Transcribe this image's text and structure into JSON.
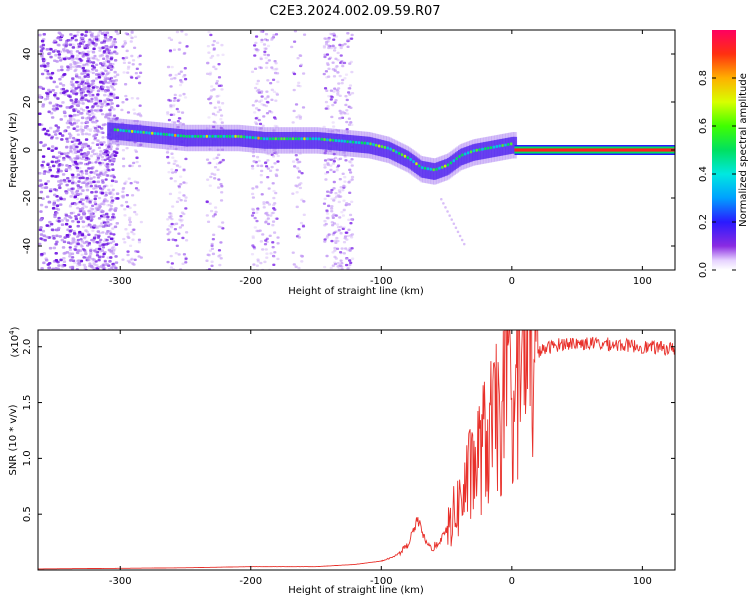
{
  "title": "C2E3.2024.002.09.59.R07",
  "chart_data": [
    {
      "type": "heatmap",
      "name": "spectrogram",
      "xlabel": "Height of straight line (km)",
      "ylabel": "Frequency (Hz)",
      "xlim": [
        -363,
        125
      ],
      "ylim": [
        -50,
        50
      ],
      "xticks": [
        -300,
        -200,
        -100,
        0,
        100
      ],
      "yticks": [
        -40,
        -20,
        0,
        20,
        40
      ],
      "ridge_frequency": {
        "x": [
          -310,
          -290,
          -270,
          -250,
          -230,
          -210,
          -190,
          -170,
          -150,
          -130,
          -110,
          -95,
          -80,
          -70,
          -60,
          -50,
          -40,
          -30,
          -20,
          -10,
          0,
          125
        ],
        "y": [
          8,
          7,
          6,
          5,
          5,
          5,
          4,
          4,
          4,
          3,
          2,
          0,
          -4,
          -8,
          -9,
          -7,
          -3,
          -1,
          0,
          1,
          2,
          0
        ]
      },
      "colorbar": {
        "label": "Normalized spectral amplitude",
        "range": [
          0.0,
          1.0
        ],
        "ticks": [
          "0.0",
          "0.2",
          "0.4",
          "0.6",
          "0.8"
        ]
      }
    },
    {
      "type": "line",
      "name": "snr",
      "xlabel": "Height of straight line (km)",
      "ylabel": "SNR (10 * v/v)",
      "exponent_label": "(x10",
      "exponent": "4",
      "xlim": [
        -363,
        125
      ],
      "ylim": [
        0,
        2.15
      ],
      "xticks": [
        -300,
        -200,
        -100,
        0,
        100
      ],
      "yticks": [
        0.5,
        1.0,
        1.5,
        2.0
      ],
      "ytick_labels": [
        "0.5",
        "1.0",
        "1.5",
        "2.0"
      ],
      "color": "#e8302a",
      "series": [
        {
          "name": "SNR",
          "x": [
            -363,
            -300,
            -250,
            -200,
            -150,
            -120,
            -100,
            -90,
            -80,
            -72,
            -66,
            -60,
            -50,
            -40,
            -30,
            -20,
            -10,
            0,
            10,
            20,
            30,
            40,
            60,
            80,
            100,
            125
          ],
          "y": [
            0.01,
            0.015,
            0.02,
            0.03,
            0.03,
            0.05,
            0.08,
            0.12,
            0.22,
            0.45,
            0.25,
            0.18,
            0.35,
            0.6,
            0.9,
            1.15,
            1.35,
            1.55,
            1.85,
            1.95,
            2.0,
            2.03,
            2.03,
            2.02,
            2.0,
            1.98
          ]
        }
      ]
    }
  ]
}
